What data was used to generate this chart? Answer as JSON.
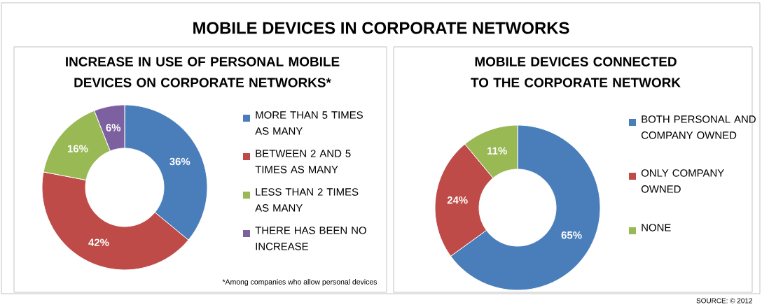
{
  "chart_data": [
    {
      "type": "donut",
      "title": "INCREASE IN USE OF PERSONAL MOBILE DEVICES ON CORPORATE NETWORKS*",
      "categories": [
        "MORE THAN 5 TIMES AS MANY",
        "BETWEEN 2 AND 5 TIMES AS MANY",
        "LESS THAN 2 TIMES AS MANY",
        "THERE HAS BEEN NO INCREASE"
      ],
      "values": [
        36,
        42,
        16,
        6
      ],
      "colors": [
        "#4a7ebb",
        "#be4b48",
        "#98b954",
        "#7d60a0"
      ],
      "value_labels": [
        "36%",
        "42%",
        "16%",
        "6%"
      ],
      "legend": "right",
      "annotations": [
        "*Among companies who allow personal devices"
      ]
    },
    {
      "type": "donut",
      "title": "MOBILE DEVICES CONNECTED TO THE CORPORATE NETWORK",
      "categories": [
        "BOTH PERSONAL AND COMPANY OWNED",
        "ONLY COMPANY OWNED",
        "NONE"
      ],
      "values": [
        65,
        24,
        11
      ],
      "colors": [
        "#4a7ebb",
        "#be4b48",
        "#98b954"
      ],
      "value_labels": [
        "65%",
        "24%",
        "11%"
      ],
      "legend": "right"
    },
    {
      "type": "other",
      "title": "MOBILE DEVICES IN CORPORATE NETWORKS",
      "annotations": [
        "SOURCE: © 2012"
      ]
    }
  ]
}
